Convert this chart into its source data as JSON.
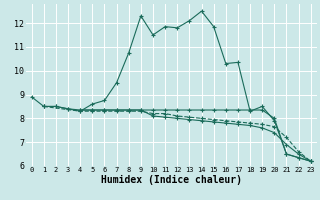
{
  "xlabel": "Humidex (Indice chaleur)",
  "bg_color": "#cce8e8",
  "line_color": "#1a6b5a",
  "grid_color": "#ffffff",
  "xlim": [
    -0.5,
    23.5
  ],
  "ylim": [
    6.0,
    12.8
  ],
  "yticks": [
    6,
    7,
    8,
    9,
    10,
    11,
    12
  ],
  "xticks": [
    0,
    1,
    2,
    3,
    4,
    5,
    6,
    7,
    8,
    9,
    10,
    11,
    12,
    13,
    14,
    15,
    16,
    17,
    18,
    19,
    20,
    21,
    22,
    23
  ],
  "line1_x": [
    0,
    1,
    2,
    3,
    4,
    5,
    6,
    7,
    8,
    9,
    10,
    11,
    12,
    13,
    14,
    15,
    16,
    17,
    18,
    19,
    20,
    21,
    22,
    23
  ],
  "line1_y": [
    8.9,
    8.5,
    8.5,
    8.4,
    8.3,
    8.6,
    8.75,
    9.5,
    10.75,
    12.3,
    11.5,
    11.85,
    11.8,
    12.1,
    12.5,
    11.85,
    10.3,
    10.35,
    8.3,
    8.5,
    7.9,
    6.5,
    6.35,
    6.2
  ],
  "line2_x": [
    1,
    2,
    3,
    4,
    5,
    6,
    7,
    8,
    9,
    10,
    11,
    12,
    13,
    14,
    15,
    16,
    17,
    18,
    19,
    20,
    21,
    22,
    23
  ],
  "line2_y": [
    8.5,
    8.5,
    8.4,
    8.35,
    8.35,
    8.35,
    8.35,
    8.35,
    8.35,
    8.35,
    8.35,
    8.35,
    8.35,
    8.35,
    8.35,
    8.35,
    8.35,
    8.35,
    8.35,
    8.0,
    6.5,
    6.35,
    6.2
  ],
  "line3_x": [
    1,
    4,
    5,
    6,
    7,
    8,
    9,
    10,
    11,
    12,
    13,
    14,
    15,
    16,
    17,
    18,
    19,
    20,
    21,
    22,
    23
  ],
  "line3_y": [
    8.5,
    8.3,
    8.3,
    8.3,
    8.3,
    8.3,
    8.3,
    8.2,
    8.2,
    8.1,
    8.05,
    8.0,
    7.95,
    7.9,
    7.85,
    7.8,
    7.75,
    7.65,
    7.2,
    6.6,
    6.2
  ],
  "line4_x": [
    4,
    5,
    6,
    7,
    8,
    9,
    10,
    11,
    12,
    13,
    14,
    15,
    16,
    17,
    18,
    19,
    20,
    21,
    22,
    23
  ],
  "line4_y": [
    8.35,
    8.35,
    8.35,
    8.35,
    8.35,
    8.35,
    8.1,
    8.05,
    8.0,
    7.95,
    7.9,
    7.85,
    7.8,
    7.75,
    7.7,
    7.6,
    7.4,
    6.9,
    6.5,
    6.2
  ]
}
